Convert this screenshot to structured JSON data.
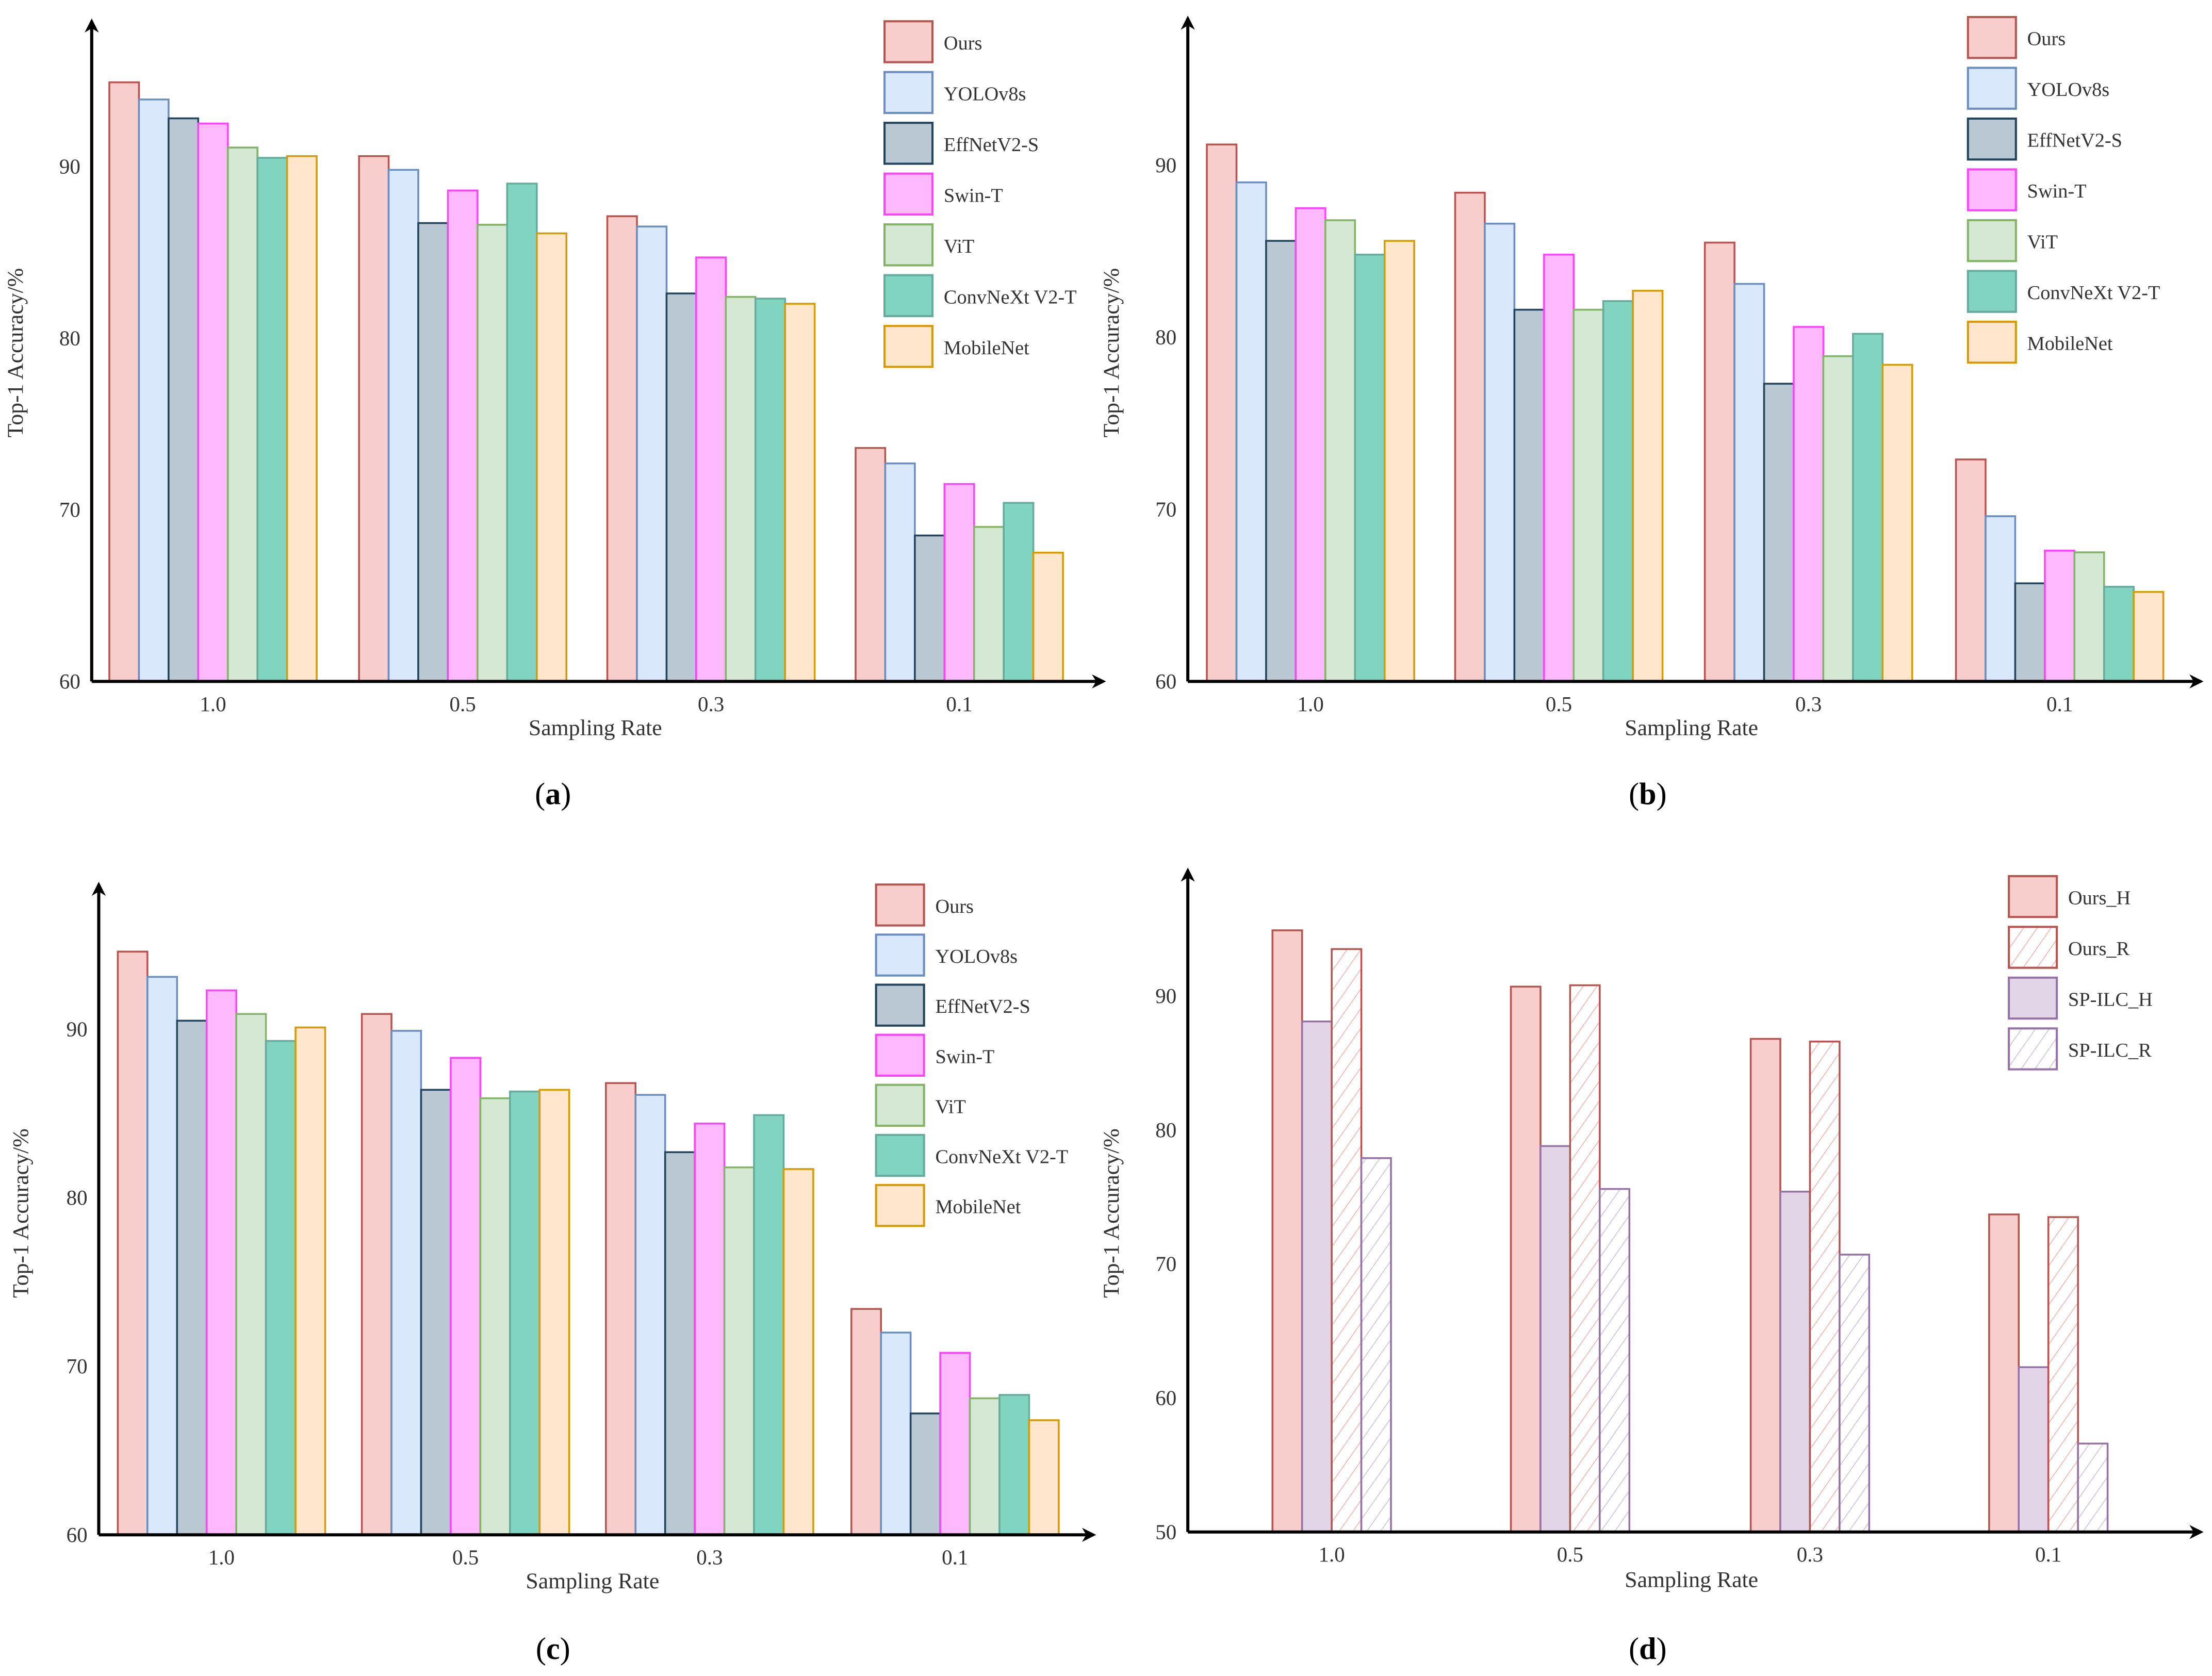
{
  "colors": {
    "Ours": {
      "fill": "#f8cecc",
      "stroke": "#b85450"
    },
    "YOLOv8s": {
      "fill": "#dae8fc",
      "stroke": "#6c8ebf"
    },
    "EffNetV2-S": {
      "fill": "#bac8d3",
      "stroke": "#23445d"
    },
    "Swin-T": {
      "fill": "#ffb9ff",
      "stroke": "#ff44ff"
    },
    "ViT": {
      "fill": "#d5e8d4",
      "stroke": "#82b366"
    },
    "ConvNeXt V2-T": {
      "fill": "#80d4c0",
      "stroke": "#67ab9f"
    },
    "MobileNet": {
      "fill": "#ffe6cc",
      "stroke": "#d79b00"
    },
    "Ours_H": {
      "fill": "#f8cecc",
      "stroke": "#b85450"
    },
    "Ours_R": {
      "fill": "hatch-red",
      "stroke": "#b85450"
    },
    "SP-ILC_H": {
      "fill": "#e1d5e7",
      "stroke": "#9673a6"
    },
    "SP-ILC_R": {
      "fill": "hatch-purple",
      "stroke": "#9673a6"
    }
  },
  "chart_data": [
    {
      "panel": "a",
      "caption_label": "a",
      "type": "bar",
      "categories": [
        "1.0",
        "0.5",
        "0.3",
        "0.1"
      ],
      "xlabel": "Sampling Rate",
      "ylabel": "Top-1 Accuracy/%",
      "ylim": [
        60,
        98
      ],
      "yticks": [
        60,
        70,
        80,
        90
      ],
      "legend": "top-right",
      "series": [
        {
          "name": "Ours",
          "values": [
            94.9,
            90.6,
            87.1,
            73.6
          ]
        },
        {
          "name": "YOLOv8s",
          "values": [
            93.9,
            89.8,
            86.5,
            72.7
          ]
        },
        {
          "name": "EffNetV2-S",
          "values": [
            92.8,
            86.7,
            82.6,
            68.5
          ]
        },
        {
          "name": "Swin-T",
          "values": [
            92.5,
            88.6,
            84.7,
            71.5
          ]
        },
        {
          "name": "ViT",
          "values": [
            91.1,
            86.6,
            82.4,
            69.0
          ]
        },
        {
          "name": "ConvNeXt V2-T",
          "values": [
            90.5,
            89.0,
            82.3,
            70.4
          ]
        },
        {
          "name": "MobileNet",
          "values": [
            90.6,
            86.1,
            82.0,
            67.5
          ]
        }
      ]
    },
    {
      "panel": "b",
      "caption_label": "b",
      "type": "bar",
      "categories": [
        "1.0",
        "0.5",
        "0.3",
        "0.1"
      ],
      "xlabel": "Sampling Rate",
      "ylabel": "Top-1 Accuracy/%",
      "ylim": [
        60,
        98
      ],
      "yticks": [
        60,
        70,
        80,
        90
      ],
      "legend": "top-right",
      "series": [
        {
          "name": "Ours",
          "values": [
            91.2,
            88.4,
            85.5,
            72.9
          ]
        },
        {
          "name": "YOLOv8s",
          "values": [
            89.0,
            86.6,
            83.1,
            69.6
          ]
        },
        {
          "name": "EffNetV2-S",
          "values": [
            85.6,
            81.6,
            77.3,
            65.7
          ]
        },
        {
          "name": "Swin-T",
          "values": [
            87.5,
            84.8,
            80.6,
            67.6
          ]
        },
        {
          "name": "ViT",
          "values": [
            86.8,
            81.6,
            78.9,
            67.5
          ]
        },
        {
          "name": "ConvNeXt V2-T",
          "values": [
            84.8,
            82.1,
            80.2,
            65.5
          ]
        },
        {
          "name": "MobileNet",
          "values": [
            85.6,
            82.7,
            78.4,
            65.2
          ]
        }
      ]
    },
    {
      "panel": "c",
      "caption_label": "c",
      "type": "bar",
      "categories": [
        "1.0",
        "0.5",
        "0.3",
        "0.1"
      ],
      "xlabel": "Sampling Rate",
      "ylabel": "Top-1 Accuracy/%",
      "ylim": [
        60,
        98
      ],
      "yticks": [
        60,
        70,
        80,
        90
      ],
      "legend": "top-right",
      "series": [
        {
          "name": "Ours",
          "values": [
            94.6,
            90.9,
            86.8,
            73.4
          ]
        },
        {
          "name": "YOLOv8s",
          "values": [
            93.1,
            89.9,
            86.1,
            72.0
          ]
        },
        {
          "name": "EffNetV2-S",
          "values": [
            90.5,
            86.4,
            82.7,
            67.2
          ]
        },
        {
          "name": "Swin-T",
          "values": [
            92.3,
            88.3,
            84.4,
            70.8
          ]
        },
        {
          "name": "ViT",
          "values": [
            90.9,
            85.9,
            81.8,
            68.1
          ]
        },
        {
          "name": "ConvNeXt V2-T",
          "values": [
            89.3,
            86.3,
            84.9,
            68.3
          ]
        },
        {
          "name": "MobileNet",
          "values": [
            90.1,
            86.4,
            81.7,
            66.8
          ]
        }
      ]
    },
    {
      "panel": "d",
      "caption_label": "d",
      "type": "bar",
      "categories": [
        "1.0",
        "0.5",
        "0.3",
        "0.1"
      ],
      "xlabel": "Sampling Rate",
      "ylabel": "Top-1 Accuracy/%",
      "ylim": [
        50,
        99
      ],
      "yticks": [
        50,
        60,
        70,
        80,
        90
      ],
      "legend": "top-right",
      "legend_order": [
        "Ours_H",
        "Ours_R",
        "SP-ILC_H",
        "SP-ILC_R"
      ],
      "series": [
        {
          "name": "Ours_H",
          "values": [
            94.9,
            90.7,
            86.8,
            73.7
          ]
        },
        {
          "name": "SP-ILC_H",
          "values": [
            88.1,
            78.8,
            75.4,
            62.3
          ]
        },
        {
          "name": "Ours_R",
          "values": [
            93.5,
            90.8,
            86.6,
            73.5
          ]
        },
        {
          "name": "SP-ILC_R",
          "values": [
            77.9,
            75.6,
            70.7,
            56.6
          ]
        }
      ]
    }
  ]
}
